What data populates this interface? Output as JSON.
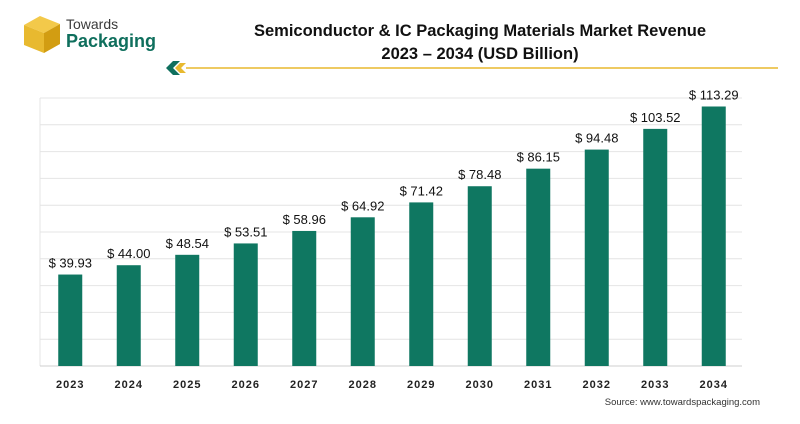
{
  "brand": {
    "line1": "Towards",
    "line2": "Packaging"
  },
  "colors": {
    "bar": "#0f7761",
    "brand_green": "#0f6f5d",
    "brand_gold": "#e8b92f"
  },
  "chart_data": {
    "type": "bar",
    "title": "Semiconductor & IC Packaging Materials Market Revenue",
    "subtitle": "2023 – 2034 (USD Billion)",
    "categories": [
      "2023",
      "2024",
      "2025",
      "2026",
      "2027",
      "2028",
      "2029",
      "2030",
      "2031",
      "2032",
      "2033",
      "2034"
    ],
    "values": [
      39.93,
      44.0,
      48.54,
      53.51,
      58.96,
      64.92,
      71.42,
      78.48,
      86.15,
      94.48,
      103.52,
      113.29
    ],
    "data_labels": [
      "$ 39.93",
      "$ 44.00",
      "$ 48.54",
      "$ 53.51",
      "$ 58.96",
      "$ 64.92",
      "$ 71.42",
      "$ 78.48",
      "$ 86.15",
      "$ 94.48",
      "$ 103.52",
      "$ 113.29"
    ],
    "xlabel": "",
    "ylabel": "",
    "ylim": [
      0,
      117
    ],
    "grid": true,
    "legend": "none"
  },
  "source": "Source: www.towardspackaging.com"
}
